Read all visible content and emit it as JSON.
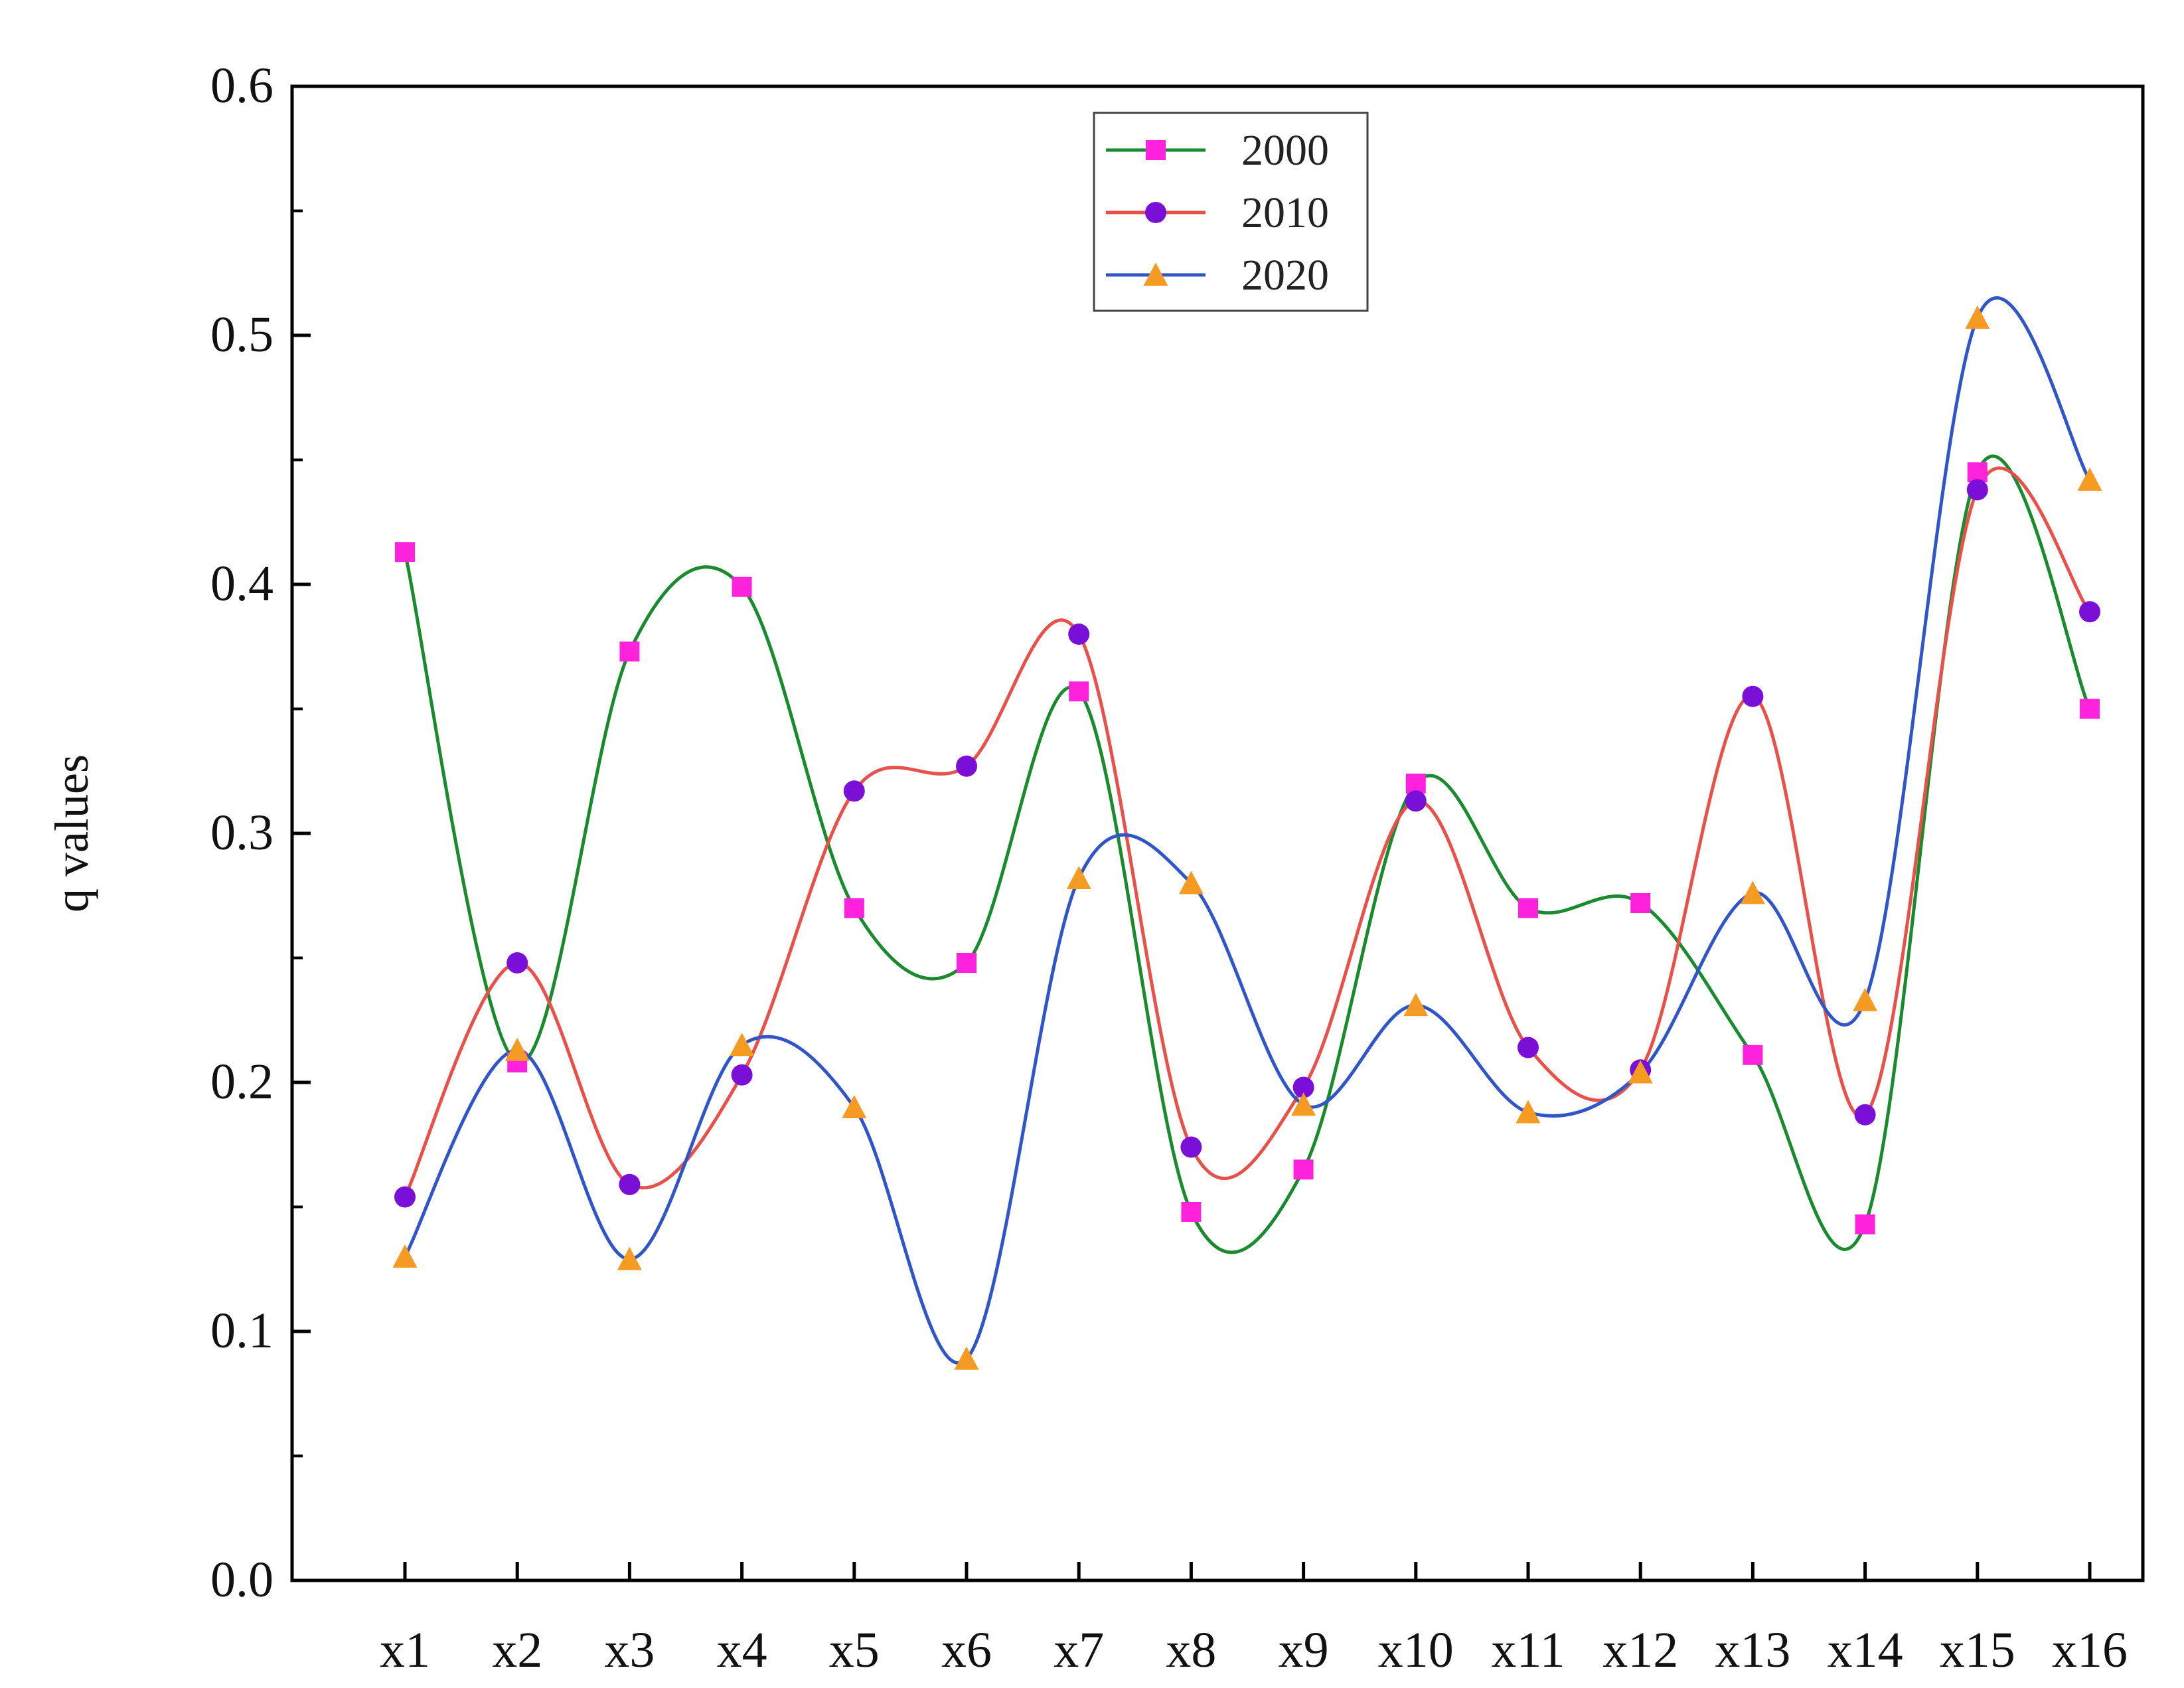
{
  "chart_data": {
    "type": "line",
    "title": "",
    "xlabel": "",
    "ylabel": "q values",
    "ylim": [
      0,
      0.6
    ],
    "yticks": [
      "0.0",
      "0.1",
      "0.2",
      "0.3",
      "0.4",
      "0.5",
      "0.6"
    ],
    "categories": [
      "x1",
      "x2",
      "x3",
      "x4",
      "x5",
      "x6",
      "x7",
      "x8",
      "x9",
      "x10",
      "x11",
      "x12",
      "x13",
      "x14",
      "x15",
      "x16"
    ],
    "grid": false,
    "legend_position": "top-center",
    "smooth": true,
    "series": [
      {
        "name": "2000",
        "line_color": "#1a8a2e",
        "marker_color": "#ff22dd",
        "marker": "square",
        "values": [
          0.413,
          0.208,
          0.373,
          0.399,
          0.27,
          0.248,
          0.357,
          0.148,
          0.165,
          0.32,
          0.27,
          0.272,
          0.211,
          0.143,
          0.445,
          0.35
        ]
      },
      {
        "name": "2010",
        "line_color": "#e8504a",
        "marker_color": "#7a10d8",
        "marker": "circle",
        "values": [
          0.154,
          0.248,
          0.159,
          0.203,
          0.317,
          0.327,
          0.38,
          0.174,
          0.198,
          0.313,
          0.214,
          0.205,
          0.355,
          0.187,
          0.438,
          0.389
        ]
      },
      {
        "name": "2020",
        "line_color": "#2f55c8",
        "marker_color": "#f59a22",
        "marker": "triangle",
        "values": [
          0.13,
          0.213,
          0.129,
          0.215,
          0.19,
          0.089,
          0.282,
          0.28,
          0.191,
          0.231,
          0.188,
          0.204,
          0.276,
          0.233,
          0.507,
          0.442
        ]
      }
    ]
  }
}
